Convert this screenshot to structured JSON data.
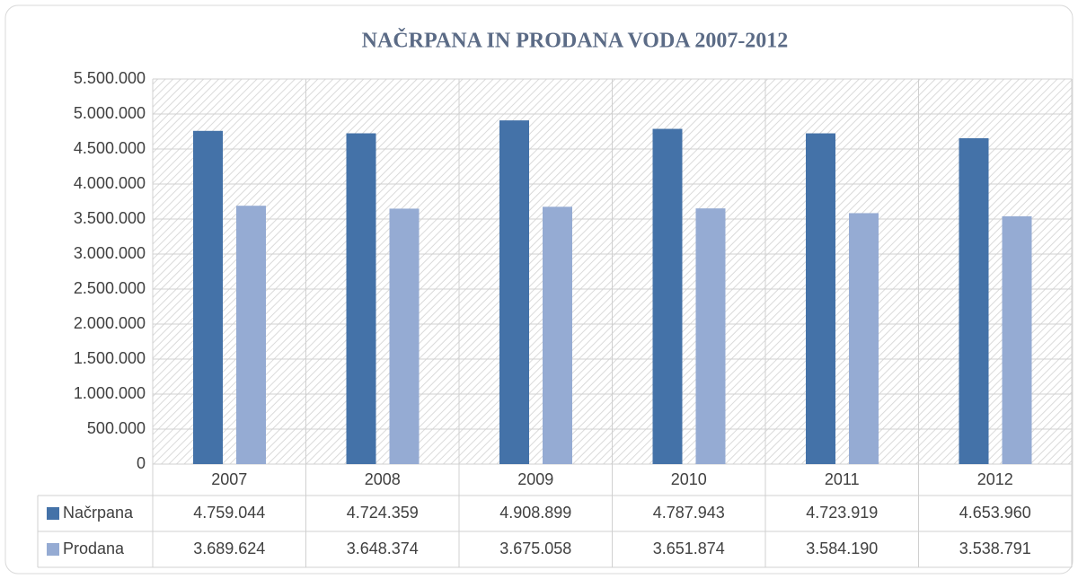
{
  "chart_data": {
    "type": "bar",
    "title": "NAČRPANA IN PRODANA VODA 2007-2012",
    "categories": [
      "2007",
      "2008",
      "2009",
      "2010",
      "2011",
      "2012"
    ],
    "series": [
      {
        "name": "Načrpana",
        "color": "#4472a8",
        "values": [
          4759044,
          4724359,
          4908899,
          4787943,
          4723919,
          4653960
        ],
        "value_labels": [
          "4.759.044",
          "4.724.359",
          "4.908.899",
          "4.787.943",
          "4.723.919",
          "4.653.960"
        ]
      },
      {
        "name": "Prodana",
        "color": "#95abd3",
        "values": [
          3689624,
          3648374,
          3675058,
          3651874,
          3584190,
          3538791
        ],
        "value_labels": [
          "3.689.624",
          "3.648.374",
          "3.675.058",
          "3.651.874",
          "3.584.190",
          "3.538.791"
        ]
      }
    ],
    "ylim": [
      0,
      5500000
    ],
    "yticks": [
      0,
      {
        "value": 500000,
        "label": "500.000"
      },
      {
        "value": 1000000,
        "label": "1.000.000"
      },
      {
        "value": 1500000,
        "label": "1.500.000"
      },
      {
        "value": 2000000,
        "label": "2.000.000"
      },
      {
        "value": 2500000,
        "label": "2.500.000"
      },
      {
        "value": 3000000,
        "label": "3.000.000"
      },
      {
        "value": 3500000,
        "label": "3.500.000"
      },
      {
        "value": 4000000,
        "label": "4.000.000"
      },
      {
        "value": 4500000,
        "label": "4.500.000"
      },
      {
        "value": 5000000,
        "label": "5.000.000"
      },
      {
        "value": 5500000,
        "label": "5.500.000"
      }
    ],
    "grid": true
  }
}
